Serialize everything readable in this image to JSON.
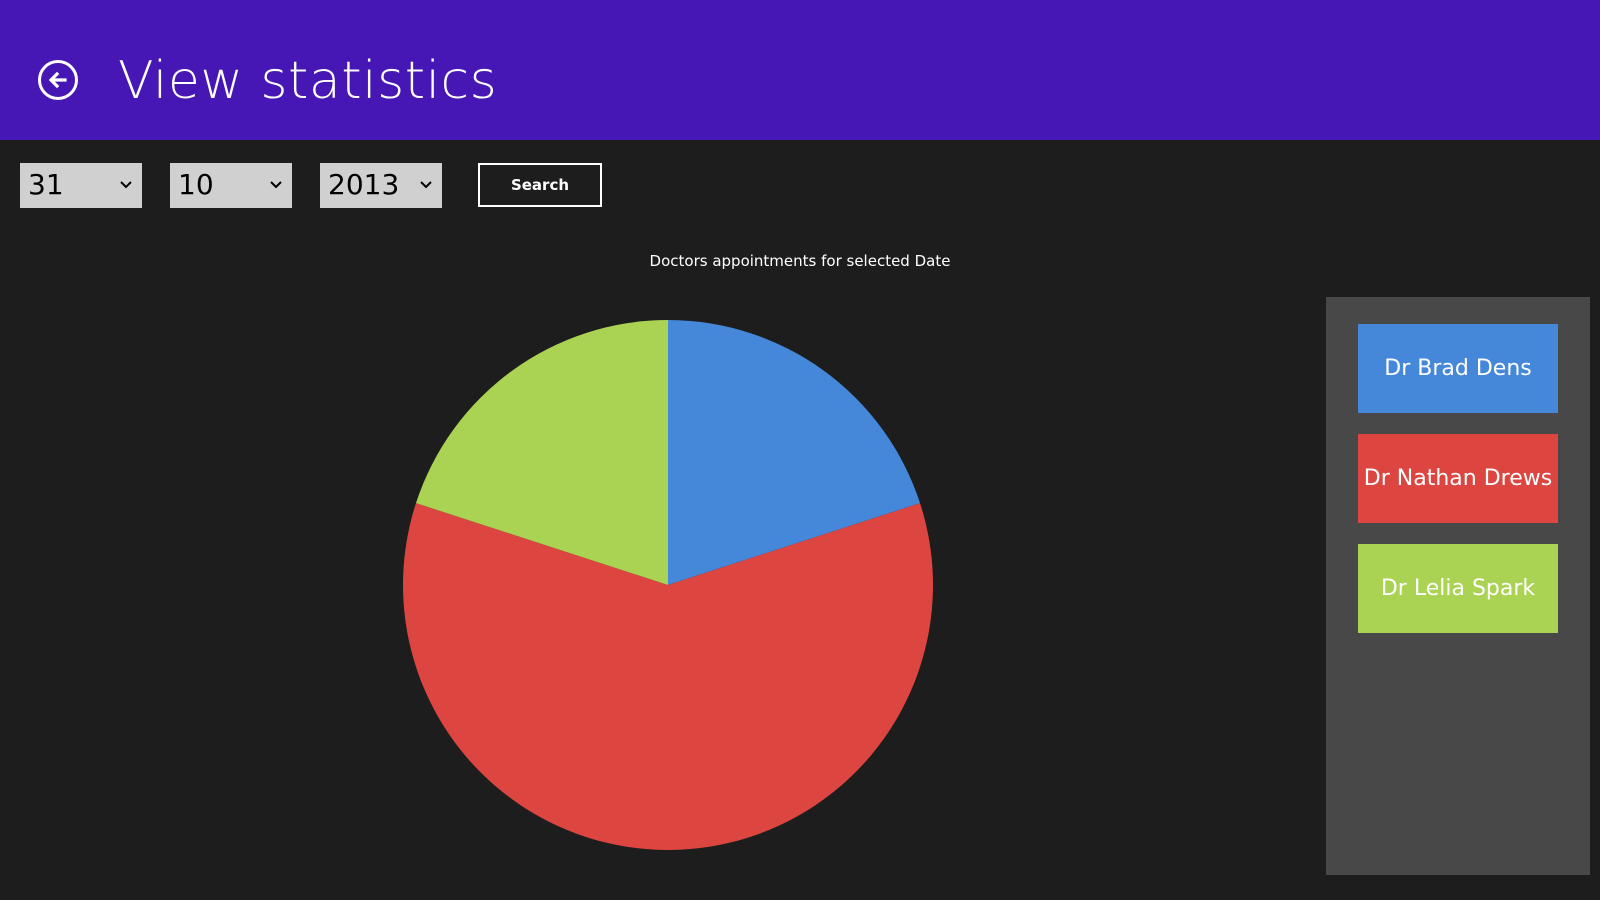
{
  "header": {
    "title": "View statistics",
    "back_icon": "back-arrow-circle-icon",
    "background": "#4617b4"
  },
  "filters": {
    "day": "31",
    "month": "10",
    "year": "2013",
    "search_label": "Search"
  },
  "chart_data": {
    "type": "pie",
    "title": "Doctors appointments for selected Date",
    "categories": [
      "Dr Brad Dens",
      "Dr Nathan Drews",
      "Dr Lelia Spark"
    ],
    "values": [
      1,
      3,
      1
    ],
    "colors": [
      "#4587d9",
      "#dc4540",
      "#abd353"
    ],
    "legend_position": "right"
  }
}
